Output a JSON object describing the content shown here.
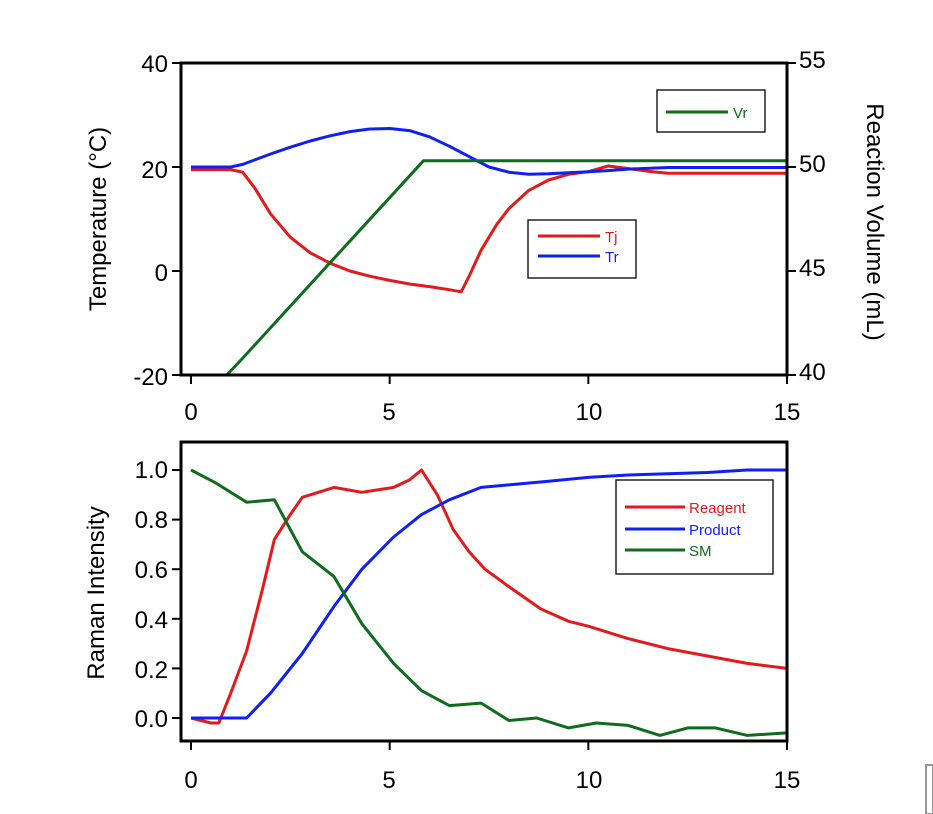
{
  "chart_data": [
    {
      "type": "line",
      "panel": "top",
      "xlabel": "",
      "ylabel": "Temperature (°C)",
      "y2label": "Reaction Volume (mL)",
      "xlim": [
        0,
        15
      ],
      "ylim": [
        -20,
        40
      ],
      "y2lim": [
        40,
        55
      ],
      "xticks": [
        "0",
        "5",
        "10",
        "15"
      ],
      "yticks": [
        "-20",
        "0",
        "20",
        "40"
      ],
      "y2ticks": [
        "40",
        "45",
        "50",
        "55"
      ],
      "grid": false,
      "legends": [
        {
          "placement": "top-right",
          "entries": [
            "Vr"
          ]
        },
        {
          "placement": "center-right",
          "entries": [
            "Tj",
            "Tr"
          ]
        }
      ],
      "series": [
        {
          "name": "Tj",
          "axis": "left",
          "color": "#e31a1c",
          "points": [
            [
              0,
              19.5
            ],
            [
              1,
              19.5
            ],
            [
              1.3,
              19
            ],
            [
              1.6,
              16
            ],
            [
              2,
              11
            ],
            [
              2.5,
              6.5
            ],
            [
              3,
              3.5
            ],
            [
              3.5,
              1.5
            ],
            [
              4,
              0
            ],
            [
              4.5,
              -1
            ],
            [
              5,
              -1.8
            ],
            [
              5.5,
              -2.5
            ],
            [
              6,
              -3
            ],
            [
              6.5,
              -3.6
            ],
            [
              6.8,
              -4
            ],
            [
              7,
              -1
            ],
            [
              7.3,
              4
            ],
            [
              7.7,
              9
            ],
            [
              8,
              12
            ],
            [
              8.5,
              15.5
            ],
            [
              9,
              17.5
            ],
            [
              9.5,
              18.6
            ],
            [
              10,
              19.1
            ],
            [
              10.5,
              20.2
            ],
            [
              10.9,
              19.8
            ],
            [
              11.5,
              19.2
            ],
            [
              12,
              18.8
            ],
            [
              13,
              18.8
            ],
            [
              14,
              18.8
            ],
            [
              15,
              18.8
            ]
          ]
        },
        {
          "name": "Tr",
          "axis": "left",
          "color": "#1020f0",
          "points": [
            [
              0,
              20
            ],
            [
              1,
              20
            ],
            [
              1.3,
              20.5
            ],
            [
              2,
              22.5
            ],
            [
              2.5,
              23.8
            ],
            [
              3,
              25
            ],
            [
              3.5,
              26
            ],
            [
              4,
              26.8
            ],
            [
              4.5,
              27.3
            ],
            [
              5,
              27.4
            ],
            [
              5.5,
              27
            ],
            [
              6,
              25.8
            ],
            [
              6.5,
              24
            ],
            [
              7,
              22
            ],
            [
              7.5,
              20
            ],
            [
              8,
              19
            ],
            [
              8.5,
              18.6
            ],
            [
              9,
              18.7
            ],
            [
              9.5,
              18.9
            ],
            [
              10,
              19.1
            ],
            [
              10.5,
              19.3
            ],
            [
              11,
              19.6
            ],
            [
              12,
              19.9
            ],
            [
              13,
              19.9
            ],
            [
              14,
              19.9
            ],
            [
              15,
              19.9
            ]
          ]
        },
        {
          "name": "Vr",
          "axis": "right",
          "color": "#0f6b1e",
          "points": [
            [
              0,
              40
            ],
            [
              0.9,
              40
            ],
            [
              1.2,
              40.6
            ],
            [
              5.85,
              50.3
            ],
            [
              6,
              50.3
            ],
            [
              15,
              50.3
            ]
          ]
        }
      ]
    },
    {
      "type": "line",
      "panel": "bottom",
      "xlabel": "",
      "ylabel": "Raman Intensity",
      "xlim": [
        0,
        15
      ],
      "ylim": [
        -0.1,
        1.1
      ],
      "xticks": [
        "0",
        "5",
        "10",
        "15"
      ],
      "yticks": [
        "0.0",
        "0.2",
        "0.4",
        "0.6",
        "0.8",
        "1.0"
      ],
      "grid": false,
      "legend": {
        "placement": "top-right",
        "entries": [
          "Reagent",
          "Product",
          "SM"
        ]
      },
      "series": [
        {
          "name": "Reagent",
          "color": "#e31a1c",
          "points": [
            [
              0,
              0
            ],
            [
              0.5,
              -0.02
            ],
            [
              0.7,
              -0.02
            ],
            [
              1,
              0.1
            ],
            [
              1.4,
              0.27
            ],
            [
              1.8,
              0.52
            ],
            [
              2.1,
              0.72
            ],
            [
              2.5,
              0.82
            ],
            [
              2.8,
              0.89
            ],
            [
              3.6,
              0.93
            ],
            [
              4.3,
              0.91
            ],
            [
              5.1,
              0.93
            ],
            [
              5.5,
              0.96
            ],
            [
              5.8,
              1.0
            ],
            [
              6.2,
              0.9
            ],
            [
              6.6,
              0.76
            ],
            [
              7,
              0.67
            ],
            [
              7.4,
              0.6
            ],
            [
              8,
              0.53
            ],
            [
              8.8,
              0.44
            ],
            [
              9.5,
              0.39
            ],
            [
              10,
              0.37
            ],
            [
              11,
              0.32
            ],
            [
              12,
              0.28
            ],
            [
              13,
              0.25
            ],
            [
              14,
              0.22
            ],
            [
              15,
              0.2
            ]
          ]
        },
        {
          "name": "Product",
          "color": "#1020f0",
          "points": [
            [
              0,
              0
            ],
            [
              1.4,
              0
            ],
            [
              2,
              0.1
            ],
            [
              2.8,
              0.26
            ],
            [
              3.6,
              0.45
            ],
            [
              4.3,
              0.6
            ],
            [
              5.1,
              0.73
            ],
            [
              5.8,
              0.82
            ],
            [
              6.5,
              0.88
            ],
            [
              7.3,
              0.93
            ],
            [
              8,
              0.94
            ],
            [
              9,
              0.955
            ],
            [
              10,
              0.97
            ],
            [
              11,
              0.98
            ],
            [
              12,
              0.985
            ],
            [
              13,
              0.99
            ],
            [
              14,
              1.0
            ],
            [
              15,
              1.0
            ]
          ]
        },
        {
          "name": "SM",
          "color": "#0f6b1e",
          "points": [
            [
              0,
              1.0
            ],
            [
              0.6,
              0.95
            ],
            [
              1.4,
              0.87
            ],
            [
              2.1,
              0.88
            ],
            [
              2.8,
              0.67
            ],
            [
              3.6,
              0.57
            ],
            [
              4.3,
              0.38
            ],
            [
              5.1,
              0.22
            ],
            [
              5.8,
              0.11
            ],
            [
              6.5,
              0.05
            ],
            [
              7.3,
              0.06
            ],
            [
              8,
              -0.01
            ],
            [
              8.7,
              0
            ],
            [
              9.5,
              -0.04
            ],
            [
              10.2,
              -0.02
            ],
            [
              11,
              -0.03
            ],
            [
              11.8,
              -0.07
            ],
            [
              12.5,
              -0.04
            ],
            [
              13.2,
              -0.04
            ],
            [
              14,
              -0.07
            ],
            [
              15,
              -0.06
            ]
          ]
        }
      ]
    }
  ],
  "colors": {
    "axis": "#000000",
    "red": "#e31a1c",
    "blue": "#1020f0",
    "green": "#0f6b1e"
  }
}
